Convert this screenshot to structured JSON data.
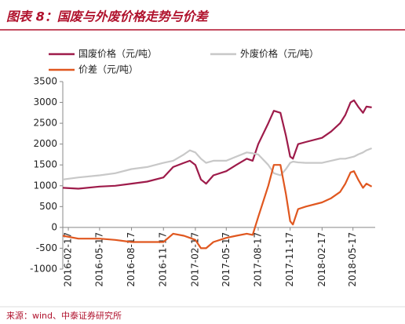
{
  "chart_data": {
    "type": "line",
    "title": "图表 8：国废与外废价格走势与价差",
    "source": "来源：wind、中泰证券研究所",
    "x": [
      "2016-02-01",
      "2016-03-17",
      "2016-05-17",
      "2016-07-01",
      "2016-08-17",
      "2016-10-01",
      "2016-11-17",
      "2016-12-15",
      "2017-01-15",
      "2017-02-01",
      "2017-02-17",
      "2017-03-05",
      "2017-03-20",
      "2017-04-10",
      "2017-05-17",
      "2017-06-15",
      "2017-07-15",
      "2017-08-01",
      "2017-08-17",
      "2017-09-15",
      "2017-10-01",
      "2017-10-20",
      "2017-11-05",
      "2017-11-17",
      "2017-11-25",
      "2017-12-10",
      "2018-01-01",
      "2018-02-17",
      "2018-03-15",
      "2018-04-10",
      "2018-04-25",
      "2018-05-10",
      "2018-05-20",
      "2018-06-01",
      "2018-06-15",
      "2018-06-25",
      "2018-07-10"
    ],
    "series": [
      {
        "name": "国废价格（元/吨）",
        "color": "#9e1b4a",
        "values": [
          950,
          930,
          980,
          1000,
          1050,
          1100,
          1200,
          1450,
          1550,
          1600,
          1500,
          1150,
          1050,
          1250,
          1350,
          1500,
          1650,
          1600,
          2000,
          2500,
          2800,
          2750,
          2200,
          1700,
          1650,
          2000,
          2050,
          2150,
          2300,
          2500,
          2700,
          3000,
          3050,
          2900,
          2750,
          2900,
          2880
        ]
      },
      {
        "name": "外废价格（元/吨）",
        "color": "#c8c8c8",
        "values": [
          1150,
          1200,
          1250,
          1300,
          1400,
          1450,
          1550,
          1600,
          1750,
          1850,
          1800,
          1650,
          1550,
          1600,
          1600,
          1700,
          1800,
          1780,
          1750,
          1500,
          1300,
          1250,
          1400,
          1550,
          1580,
          1560,
          1550,
          1550,
          1600,
          1650,
          1650,
          1680,
          1700,
          1750,
          1800,
          1850,
          1900
        ]
      },
      {
        "name": "价差（元/吨）",
        "color": "#e0571f",
        "values": [
          -200,
          -270,
          -270,
          -300,
          -350,
          -350,
          -350,
          -150,
          -200,
          -250,
          -300,
          -500,
          -500,
          -350,
          -250,
          -200,
          -150,
          -180,
          250,
          1000,
          1500,
          1500,
          800,
          150,
          70,
          440,
          500,
          600,
          700,
          850,
          1050,
          1320,
          1350,
          1150,
          950,
          1050,
          980
        ]
      }
    ],
    "xlim": [
      "2016-02-01",
      "2018-07-20"
    ],
    "xticks": [
      "2016-02-17",
      "2016-05-17",
      "2016-08-17",
      "2016-11-17",
      "2017-02-17",
      "2017-05-17",
      "2017-08-17",
      "2017-11-17",
      "2018-02-17",
      "2018-05-17"
    ],
    "ylim": [
      -1000,
      3500
    ],
    "yticks": [
      -1000,
      -500,
      0,
      500,
      1000,
      1500,
      2000,
      2500,
      3000,
      3500
    ],
    "grid": false
  }
}
